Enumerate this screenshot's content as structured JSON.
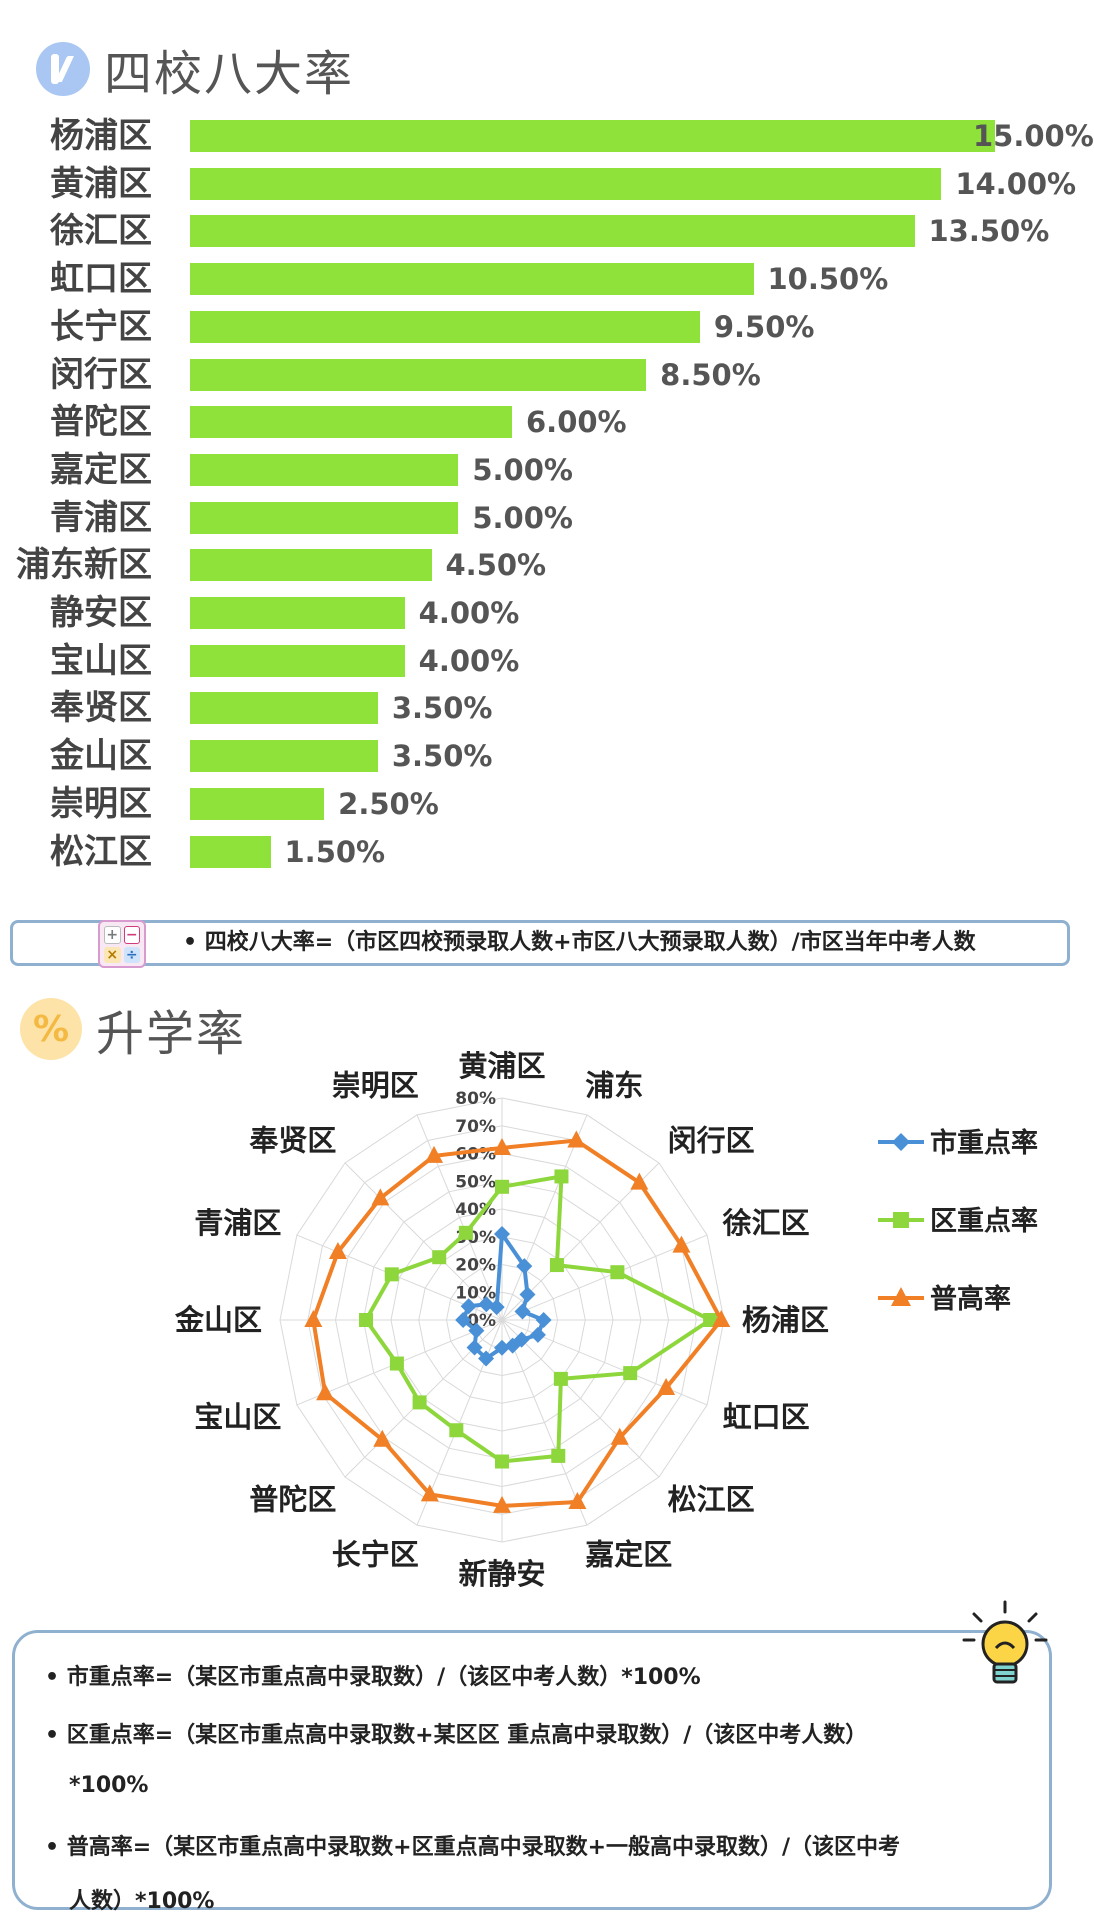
{
  "section1": {
    "title": "四校八大率"
  },
  "bars": [
    {
      "district": "杨浦区",
      "value": 15.0,
      "label": "15.00%"
    },
    {
      "district": "黄浦区",
      "value": 14.0,
      "label": "14.00%"
    },
    {
      "district": "徐汇区",
      "value": 13.5,
      "label": "13.50%"
    },
    {
      "district": "虹口区",
      "value": 10.5,
      "label": "10.50%"
    },
    {
      "district": "长宁区",
      "value": 9.5,
      "label": "9.50%"
    },
    {
      "district": "闵行区",
      "value": 8.5,
      "label": "8.50%"
    },
    {
      "district": "普陀区",
      "value": 6.0,
      "label": "6.00%"
    },
    {
      "district": "嘉定区",
      "value": 5.0,
      "label": "5.00%"
    },
    {
      "district": "青浦区",
      "value": 5.0,
      "label": "5.00%"
    },
    {
      "district": "浦东新区",
      "value": 4.5,
      "label": "4.50%"
    },
    {
      "district": "静安区",
      "value": 4.0,
      "label": "4.00%"
    },
    {
      "district": "宝山区",
      "value": 4.0,
      "label": "4.00%"
    },
    {
      "district": "奉贤区",
      "value": 3.5,
      "label": "3.50%"
    },
    {
      "district": "金山区",
      "value": 3.5,
      "label": "3.50%"
    },
    {
      "district": "崇明区",
      "value": 2.5,
      "label": "2.50%"
    },
    {
      "district": "松江区",
      "value": 1.5,
      "label": "1.50%"
    }
  ],
  "formula1": "•  四校八大率=（市区四校预录取人数+市区八大预录取人数）/市区当年中考人数",
  "calc_symbols": [
    "+",
    "−",
    "×",
    "÷"
  ],
  "section2": {
    "title": "升学率"
  },
  "chart_data": [
    {
      "type": "bar",
      "orientation": "horizontal",
      "title": "四校八大率",
      "categories": [
        "杨浦区",
        "黄浦区",
        "徐汇区",
        "虹口区",
        "长宁区",
        "闵行区",
        "普陀区",
        "嘉定区",
        "青浦区",
        "浦东新区",
        "静安区",
        "宝山区",
        "奉贤区",
        "金山区",
        "崇明区",
        "松江区"
      ],
      "values": [
        15.0,
        14.0,
        13.5,
        10.5,
        9.5,
        8.5,
        6.0,
        5.0,
        5.0,
        4.5,
        4.0,
        4.0,
        3.5,
        3.5,
        2.5,
        1.5
      ],
      "unit": "%",
      "color": "#8fe23a"
    },
    {
      "type": "radar",
      "title": "升学率",
      "categories": [
        "黄浦区",
        "浦东",
        "闵行区",
        "徐汇区",
        "杨浦区",
        "虹口区",
        "松江区",
        "嘉定区",
        "新静安",
        "长宁区",
        "普陀区",
        "宝山区",
        "金山区",
        "青浦区",
        "奉贤区",
        "崇明区"
      ],
      "ticks": [
        "0%",
        "10%",
        "20%",
        "30%",
        "40%",
        "50%",
        "60%",
        "70%",
        "80%"
      ],
      "rlim": [
        0,
        80
      ],
      "legend_position": "right",
      "series": [
        {
          "name": "市重点率",
          "color": "#4a90d6",
          "marker": "diamond",
          "values": [
            31,
            21,
            13,
            8,
            15,
            14,
            10,
            10,
            10,
            15,
            14,
            10,
            14,
            13,
            8,
            5
          ]
        },
        {
          "name": "区重点率",
          "color": "#8dd63c",
          "marker": "square",
          "values": [
            48,
            56,
            28,
            45,
            75,
            50,
            30,
            53,
            51,
            43,
            42,
            41,
            49,
            43,
            32,
            34
          ]
        },
        {
          "name": "普高率",
          "color": "#f07f25",
          "marker": "triangle",
          "values": [
            62,
            70,
            70,
            70,
            79,
            64,
            60,
            71,
            67,
            68,
            61,
            69,
            68,
            64,
            62,
            64
          ]
        }
      ]
    }
  ],
  "notes": [
    "•  市重点率=（某区市重点高中录取数）/（该区中考人数）*100%",
    "•  区重点率=（某区市重点高中录取数+某区区 重点高中录取数）/（该区中考人数）",
    "*100%",
    "•  普高率=（某区市重点高中录取数+区重点高中录取数+一般高中录取数）/（该区中考",
    "人数）*100%"
  ]
}
